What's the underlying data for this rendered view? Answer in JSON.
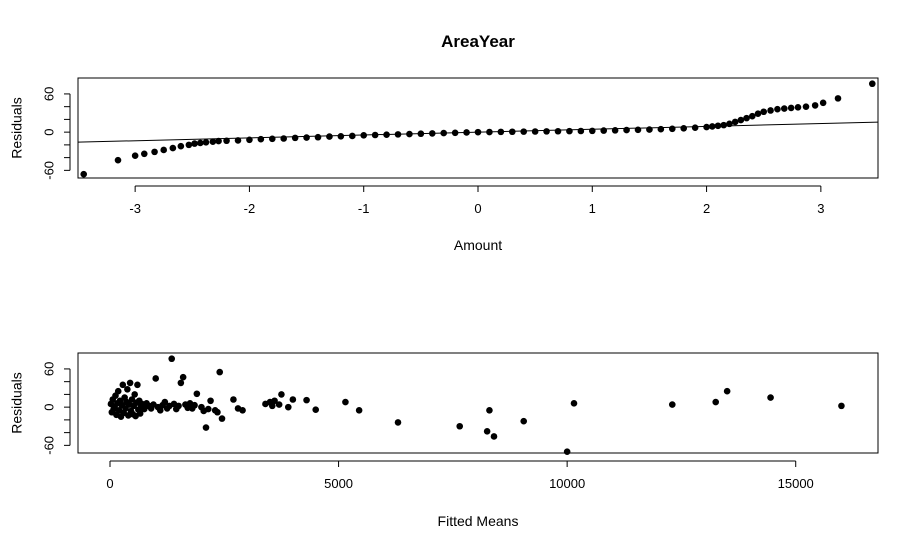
{
  "figure": {
    "title": "AreaYear"
  },
  "chart_data": [
    {
      "type": "scatter",
      "xlabel": "Amount",
      "ylabel": "Residuals",
      "xlim": [
        -3.5,
        3.5
      ],
      "ylim": [
        -72,
        85
      ],
      "xticks": [
        -3,
        -2,
        -1,
        0,
        1,
        2,
        3
      ],
      "yticks": [
        -60,
        -40,
        -20,
        0,
        20,
        40,
        60
      ],
      "ytick_labels": [
        "-60",
        "",
        "",
        "0",
        "",
        "",
        "60"
      ],
      "grid": false,
      "reference_line": {
        "intercept": 0,
        "slope": 4.5
      },
      "points": [
        [
          -3.45,
          -66
        ],
        [
          -3.15,
          -44
        ],
        [
          -3.0,
          -37
        ],
        [
          -2.92,
          -34
        ],
        [
          -2.83,
          -31
        ],
        [
          -2.75,
          -28
        ],
        [
          -2.67,
          -25
        ],
        [
          -2.6,
          -22
        ],
        [
          -2.53,
          -20
        ],
        [
          -2.48,
          -18
        ],
        [
          -2.43,
          -17
        ],
        [
          -2.38,
          -16
        ],
        [
          -2.32,
          -15
        ],
        [
          -2.27,
          -14
        ],
        [
          -2.2,
          -13.5
        ],
        [
          -2.1,
          -13
        ],
        [
          -2.0,
          -12
        ],
        [
          -1.9,
          -11
        ],
        [
          -1.8,
          -10.5
        ],
        [
          -1.7,
          -10
        ],
        [
          -1.6,
          -9
        ],
        [
          -1.5,
          -8.5
        ],
        [
          -1.4,
          -8
        ],
        [
          -1.3,
          -7
        ],
        [
          -1.2,
          -6.5
        ],
        [
          -1.1,
          -6
        ],
        [
          -1.0,
          -5
        ],
        [
          -0.9,
          -4.5
        ],
        [
          -0.8,
          -4
        ],
        [
          -0.7,
          -3.5
        ],
        [
          -0.6,
          -3
        ],
        [
          -0.5,
          -2.5
        ],
        [
          -0.4,
          -2
        ],
        [
          -0.3,
          -1.5
        ],
        [
          -0.2,
          -1
        ],
        [
          -0.1,
          -0.5
        ],
        [
          0,
          0
        ],
        [
          0.1,
          0.2
        ],
        [
          0.2,
          0.4
        ],
        [
          0.3,
          0.6
        ],
        [
          0.4,
          0.8
        ],
        [
          0.5,
          1
        ],
        [
          0.6,
          1.2
        ],
        [
          0.7,
          1.4
        ],
        [
          0.8,
          1.6
        ],
        [
          0.9,
          1.8
        ],
        [
          1.0,
          2
        ],
        [
          1.1,
          2.4
        ],
        [
          1.2,
          2.8
        ],
        [
          1.3,
          3.2
        ],
        [
          1.4,
          3.6
        ],
        [
          1.5,
          4
        ],
        [
          1.6,
          4.6
        ],
        [
          1.7,
          5.2
        ],
        [
          1.8,
          6
        ],
        [
          1.9,
          7
        ],
        [
          2.0,
          8
        ],
        [
          2.05,
          9
        ],
        [
          2.1,
          10
        ],
        [
          2.15,
          11
        ],
        [
          2.2,
          13
        ],
        [
          2.25,
          16
        ],
        [
          2.3,
          19
        ],
        [
          2.35,
          22
        ],
        [
          2.4,
          25
        ],
        [
          2.45,
          29
        ],
        [
          2.5,
          32
        ],
        [
          2.56,
          34
        ],
        [
          2.62,
          36
        ],
        [
          2.68,
          37
        ],
        [
          2.74,
          38
        ],
        [
          2.8,
          39
        ],
        [
          2.87,
          40
        ],
        [
          2.95,
          42
        ],
        [
          3.02,
          46
        ],
        [
          3.15,
          53
        ],
        [
          3.45,
          76
        ]
      ]
    },
    {
      "type": "scatter",
      "xlabel": "Fitted Means",
      "ylabel": "Residuals",
      "xlim": [
        -700,
        16800
      ],
      "ylim": [
        -72,
        85
      ],
      "xticks": [
        0,
        5000,
        10000,
        15000
      ],
      "yticks": [
        -60,
        -40,
        -20,
        0,
        20,
        40,
        60
      ],
      "ytick_labels": [
        "-60",
        "",
        "",
        "0",
        "",
        "",
        "60"
      ],
      "grid": false,
      "points": [
        [
          20,
          5
        ],
        [
          40,
          -8
        ],
        [
          60,
          12
        ],
        [
          80,
          -3
        ],
        [
          100,
          0
        ],
        [
          120,
          18
        ],
        [
          140,
          -12
        ],
        [
          160,
          6
        ],
        [
          180,
          25
        ],
        [
          200,
          -5
        ],
        [
          220,
          10
        ],
        [
          240,
          -15
        ],
        [
          260,
          3
        ],
        [
          280,
          35
        ],
        [
          300,
          -9
        ],
        [
          320,
          15
        ],
        [
          340,
          -2
        ],
        [
          360,
          8
        ],
        [
          380,
          28
        ],
        [
          400,
          -13
        ],
        [
          420,
          4
        ],
        [
          440,
          38
        ],
        [
          460,
          -6
        ],
        [
          480,
          12
        ],
        [
          500,
          -11
        ],
        [
          520,
          2
        ],
        [
          540,
          20
        ],
        [
          560,
          -14
        ],
        [
          580,
          7
        ],
        [
          600,
          35
        ],
        [
          620,
          -4
        ],
        [
          640,
          10
        ],
        [
          660,
          -10
        ],
        [
          680,
          1
        ],
        [
          700,
          5
        ],
        [
          750,
          -3
        ],
        [
          800,
          6
        ],
        [
          850,
          2
        ],
        [
          900,
          -2
        ],
        [
          950,
          4
        ],
        [
          1000,
          45
        ],
        [
          1050,
          0
        ],
        [
          1100,
          -5
        ],
        [
          1150,
          3
        ],
        [
          1200,
          8
        ],
        [
          1250,
          -2
        ],
        [
          1300,
          2
        ],
        [
          1350,
          76
        ],
        [
          1400,
          5
        ],
        [
          1450,
          -3
        ],
        [
          1500,
          2
        ],
        [
          1550,
          38
        ],
        [
          1600,
          47
        ],
        [
          1650,
          4
        ],
        [
          1700,
          -1
        ],
        [
          1750,
          6
        ],
        [
          1800,
          -2
        ],
        [
          1850,
          3
        ],
        [
          1900,
          21
        ],
        [
          2000,
          0
        ],
        [
          2050,
          -6
        ],
        [
          2100,
          -32
        ],
        [
          2150,
          -3
        ],
        [
          2200,
          10
        ],
        [
          2300,
          -5
        ],
        [
          2350,
          -8
        ],
        [
          2400,
          55
        ],
        [
          2450,
          -18
        ],
        [
          2700,
          12
        ],
        [
          2800,
          -2
        ],
        [
          2900,
          -5
        ],
        [
          3400,
          5
        ],
        [
          3500,
          8
        ],
        [
          3550,
          2
        ],
        [
          3600,
          10
        ],
        [
          3700,
          4
        ],
        [
          3750,
          20
        ],
        [
          3900,
          0
        ],
        [
          4000,
          12
        ],
        [
          4300,
          11
        ],
        [
          4500,
          -4
        ],
        [
          5150,
          8
        ],
        [
          5450,
          -5
        ],
        [
          6300,
          -24
        ],
        [
          7650,
          -30
        ],
        [
          8250,
          -38
        ],
        [
          8300,
          -5
        ],
        [
          8400,
          -46
        ],
        [
          9050,
          -22
        ],
        [
          10000,
          -70
        ],
        [
          10150,
          6
        ],
        [
          12300,
          4
        ],
        [
          13250,
          8
        ],
        [
          13500,
          25
        ],
        [
          14450,
          15
        ],
        [
          16000,
          2
        ]
      ]
    }
  ]
}
